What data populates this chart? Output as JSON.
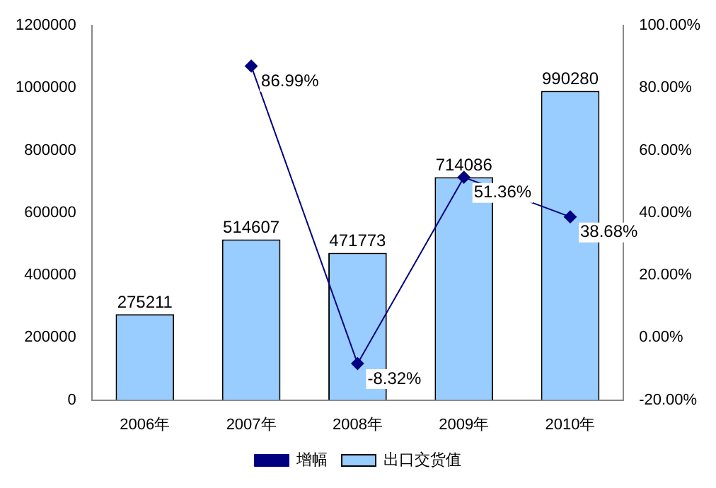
{
  "chart_data": {
    "type": "bar",
    "categories": [
      "2006年",
      "2007年",
      "2008年",
      "2009年",
      "2010年"
    ],
    "series": [
      {
        "name": "出口交货值",
        "color": "#99ccff",
        "values": [
          275211,
          514607,
          471773,
          714086,
          990280
        ],
        "value_labels": [
          "275211",
          "514607",
          "471773",
          "714086",
          "990280"
        ]
      },
      {
        "name": "增幅",
        "type": "line",
        "axis": "y2",
        "color": "#000080",
        "marker": "diamond",
        "values": [
          null,
          86.99,
          -8.32,
          51.36,
          38.68
        ],
        "value_labels": [
          null,
          "86.99%",
          "-8.32%",
          "51.36%",
          "38.68%"
        ]
      }
    ],
    "ylim": [
      0,
      1200000
    ],
    "yticks": [
      0,
      200000,
      400000,
      600000,
      800000,
      1000000,
      1200000
    ],
    "y2lim": [
      -20,
      100
    ],
    "y2ticks": [
      {
        "value": -20,
        "label": "-20.00%"
      },
      {
        "value": 0,
        "label": "0.00%"
      },
      {
        "value": 20,
        "label": "20.00%"
      },
      {
        "value": 40,
        "label": "40.00%"
      },
      {
        "value": 60,
        "label": "60.00%"
      },
      {
        "value": 80,
        "label": "80.00%"
      },
      {
        "value": 100,
        "label": "100.00%"
      }
    ],
    "grid": false,
    "legend": "bottom"
  }
}
